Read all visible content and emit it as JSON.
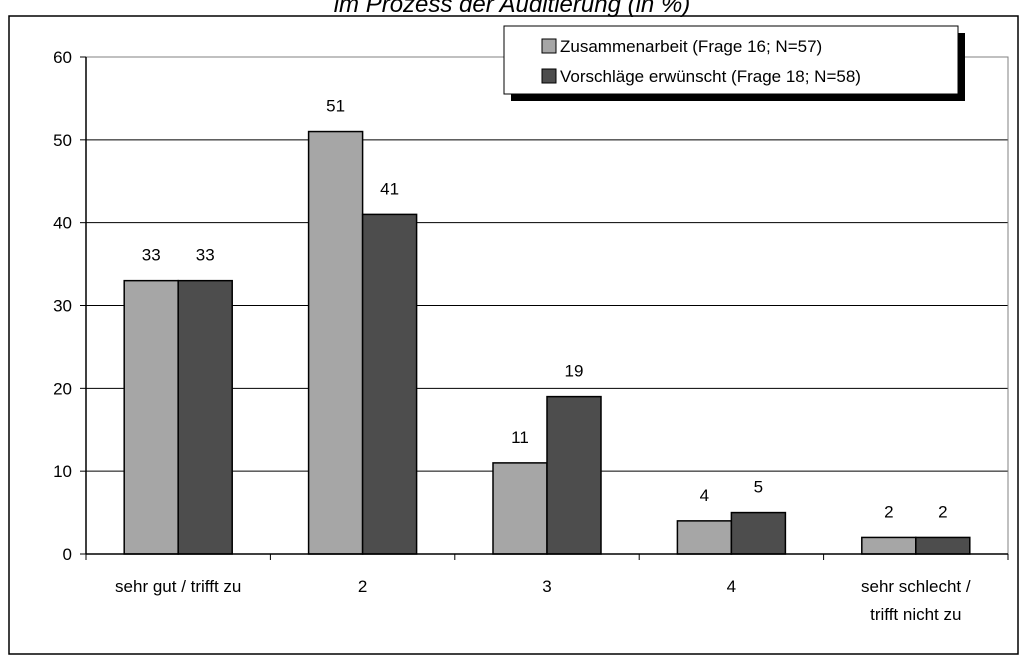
{
  "chart_data": {
    "type": "bar",
    "title": "im Prozess der Auditierung (in %)",
    "categories": [
      [
        "sehr gut / trifft zu"
      ],
      [
        "2"
      ],
      [
        "3"
      ],
      [
        "4"
      ],
      [
        "sehr schlecht /",
        "trifft nicht zu"
      ]
    ],
    "series": [
      {
        "name": "Zusammenarbeit (Frage 16; N=57)",
        "values": [
          33,
          51,
          11,
          4,
          2
        ],
        "color": "#a6a6a6"
      },
      {
        "name": "Vorschläge erwünscht (Frage 18; N=58)",
        "values": [
          33,
          41,
          19,
          5,
          2
        ],
        "color": "#4d4d4d"
      }
    ],
    "ylim": [
      0,
      60
    ],
    "yticks": [
      0,
      10,
      20,
      30,
      40,
      50,
      60
    ],
    "grid": true,
    "legend_position": "top-right",
    "data_labels": true
  }
}
